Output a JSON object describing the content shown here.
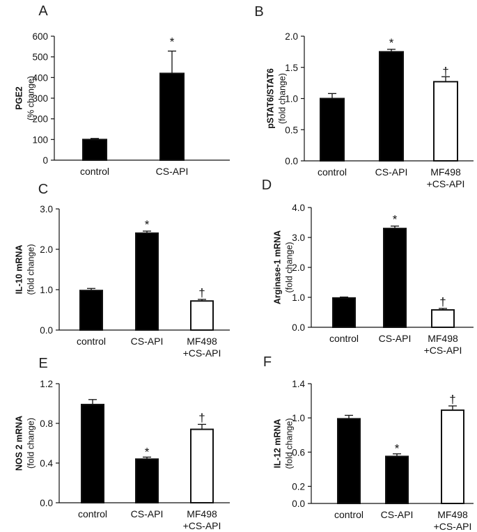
{
  "chart_data": [
    {
      "type": "bar",
      "letter": "A",
      "ylabel": "PGE2",
      "ylabel_sub": "(% change)",
      "categories": [
        "control",
        "CS-API"
      ],
      "values": [
        100,
        420
      ],
      "errors": [
        5,
        108
      ],
      "fills": [
        "#000000",
        "#000000"
      ],
      "annotations": [
        "",
        "*"
      ],
      "ylim": [
        0,
        600
      ],
      "yticks": [
        0,
        100,
        200,
        300,
        400,
        500,
        600
      ],
      "ytick_labels": [
        "0",
        "100",
        "200",
        "300",
        "400",
        "500",
        "600"
      ]
    },
    {
      "type": "bar",
      "letter": "B",
      "ylabel": "pSTAT6/STAT6",
      "ylabel_sub": "(fold change)",
      "categories": [
        "control",
        "CS-API",
        "MF498\n+CS-API"
      ],
      "values": [
        1.0,
        1.75,
        1.27
      ],
      "errors": [
        0.08,
        0.04,
        0.08
      ],
      "fills": [
        "#000000",
        "#000000",
        "#ffffff"
      ],
      "annotations": [
        "",
        "*",
        "†"
      ],
      "ylim": [
        0,
        2.0
      ],
      "yticks": [
        0,
        0.5,
        1.0,
        1.5,
        2.0
      ],
      "ytick_labels": [
        "0.0",
        "0.5",
        "1.0",
        "1.5",
        "2.0"
      ]
    },
    {
      "type": "bar",
      "letter": "C",
      "ylabel": "IL-10 mRNA",
      "ylabel_sub": "(fold change)",
      "categories": [
        "control",
        "CS-API",
        "MF498\n+CS-API"
      ],
      "values": [
        0.98,
        2.4,
        0.72
      ],
      "errors": [
        0.05,
        0.05,
        0.04
      ],
      "fills": [
        "#000000",
        "#000000",
        "#ffffff"
      ],
      "annotations": [
        "",
        "*",
        "†"
      ],
      "ylim": [
        0,
        3.0
      ],
      "yticks": [
        0,
        1.0,
        2.0,
        3.0
      ],
      "ytick_labels": [
        "0.0",
        "1.0",
        "2.0",
        "3.0"
      ]
    },
    {
      "type": "bar",
      "letter": "D",
      "ylabel": "Arginase-1 mRNA",
      "ylabel_sub": "(fold change)",
      "categories": [
        "control",
        "CS-API",
        "MF498\n+CS-API"
      ],
      "values": [
        0.98,
        3.3,
        0.58
      ],
      "errors": [
        0.03,
        0.08,
        0.05
      ],
      "fills": [
        "#000000",
        "#000000",
        "#ffffff"
      ],
      "annotations": [
        "",
        "*",
        "†"
      ],
      "ylim": [
        0,
        4.0
      ],
      "yticks": [
        0,
        1.0,
        2.0,
        3.0,
        4.0
      ],
      "ytick_labels": [
        "0.0",
        "1.0",
        "2.0",
        "3.0",
        "4.0"
      ]
    },
    {
      "type": "bar",
      "letter": "E",
      "ylabel": "NOS 2 mRNA",
      "ylabel_sub": "(fold change)",
      "categories": [
        "control",
        "CS-API",
        "MF498\n+CS-API"
      ],
      "values": [
        0.99,
        0.44,
        0.74
      ],
      "errors": [
        0.05,
        0.02,
        0.05
      ],
      "fills": [
        "#000000",
        "#000000",
        "#ffffff"
      ],
      "annotations": [
        "",
        "*",
        "†"
      ],
      "ylim": [
        0,
        1.2
      ],
      "yticks": [
        0,
        0.4,
        0.8,
        1.2
      ],
      "ytick_labels": [
        "0.0",
        "0.4",
        "0.8",
        "1.2"
      ]
    },
    {
      "type": "bar",
      "letter": "F",
      "ylabel": "IL-12 mRNA",
      "ylabel_sub": "(fold change)",
      "categories": [
        "control",
        "CS-API",
        "MF498\n+CS-API"
      ],
      "values": [
        0.99,
        0.55,
        1.09
      ],
      "errors": [
        0.04,
        0.03,
        0.05
      ],
      "fills": [
        "#000000",
        "#000000",
        "#ffffff"
      ],
      "annotations": [
        "",
        "*",
        "†"
      ],
      "ylim": [
        0,
        1.4
      ],
      "yticks": [
        0,
        0.2,
        0.6,
        1.0,
        1.4
      ],
      "ytick_labels": [
        "0.0",
        "0.2",
        "0.6",
        "1.0",
        "1.4"
      ]
    }
  ]
}
